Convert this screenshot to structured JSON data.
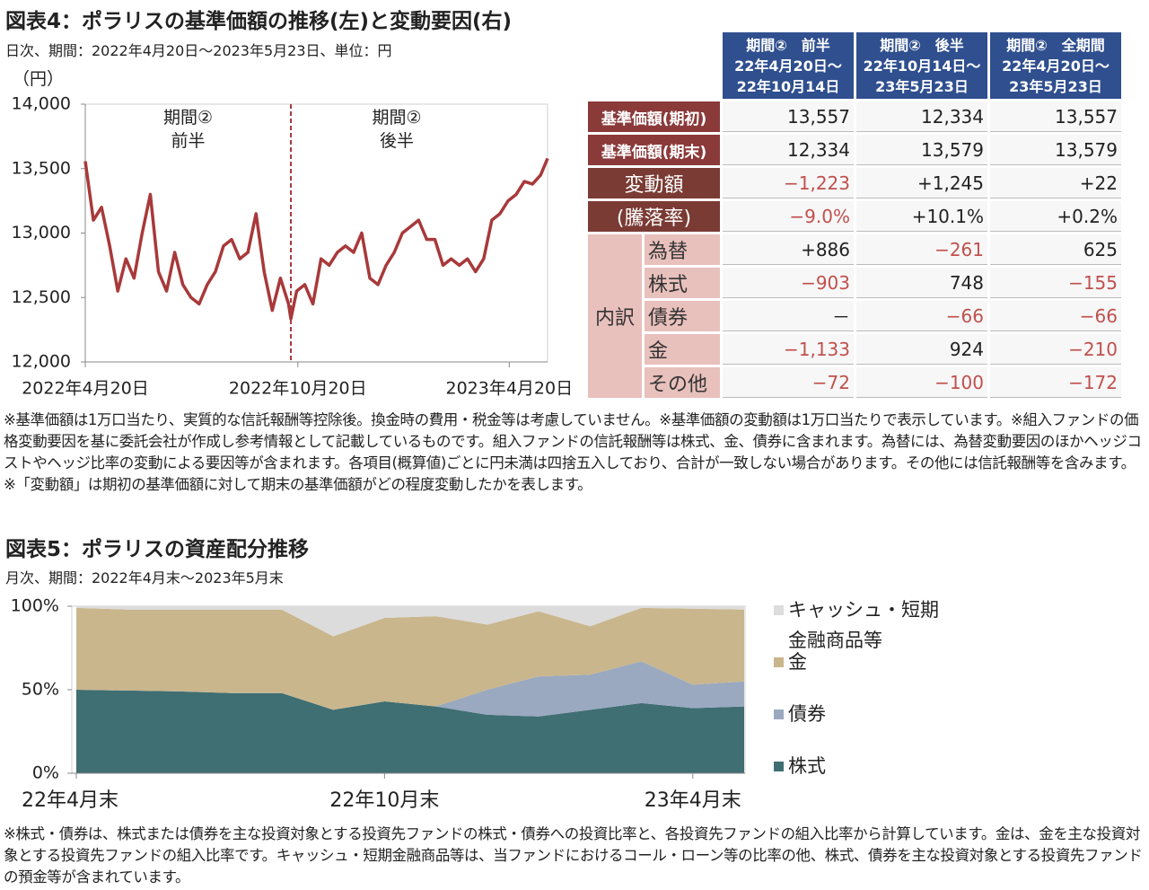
{
  "chart_data": [
    {
      "type": "line",
      "title": "図表4：ポラリスの基準価額の推移(左)と変動要因(右)",
      "subtitle": "日次、期間：2022年4月20日～2023年5月23日、単位：円",
      "y_label": "（円）",
      "x": [
        "2022-04-20",
        "2022-04-27",
        "2022-05-04",
        "2022-05-11",
        "2022-05-18",
        "2022-05-25",
        "2022-06-01",
        "2022-06-08",
        "2022-06-15",
        "2022-06-22",
        "2022-06-29",
        "2022-07-06",
        "2022-07-13",
        "2022-07-20",
        "2022-07-27",
        "2022-08-03",
        "2022-08-10",
        "2022-08-17",
        "2022-08-24",
        "2022-08-31",
        "2022-09-07",
        "2022-09-14",
        "2022-09-21",
        "2022-09-28",
        "2022-10-05",
        "2022-10-12",
        "2022-10-14",
        "2022-10-19",
        "2022-10-26",
        "2022-11-02",
        "2022-11-09",
        "2022-11-16",
        "2022-11-23",
        "2022-11-30",
        "2022-12-07",
        "2022-12-14",
        "2022-12-21",
        "2022-12-28",
        "2023-01-04",
        "2023-01-11",
        "2023-01-18",
        "2023-01-25",
        "2023-02-01",
        "2023-02-08",
        "2023-02-15",
        "2023-02-22",
        "2023-03-01",
        "2023-03-08",
        "2023-03-15",
        "2023-03-22",
        "2023-03-29",
        "2023-04-05",
        "2023-04-12",
        "2023-04-19",
        "2023-04-26",
        "2023-05-03",
        "2023-05-10",
        "2023-05-17",
        "2023-05-23"
      ],
      "series": [
        {
          "name": "基準価額",
          "color": "#a8393a",
          "values": [
            13557,
            13100,
            13200,
            12900,
            12550,
            12800,
            12650,
            13000,
            13300,
            12700,
            12550,
            12850,
            12600,
            12500,
            12450,
            12600,
            12700,
            12900,
            12950,
            12800,
            12850,
            13150,
            12700,
            12400,
            12650,
            12450,
            12334,
            12550,
            12600,
            12450,
            12800,
            12750,
            12850,
            12900,
            12850,
            13000,
            12650,
            12600,
            12750,
            12850,
            13000,
            13050,
            13100,
            12950,
            12950,
            12750,
            12800,
            12750,
            12800,
            12700,
            12800,
            13100,
            13150,
            13250,
            13300,
            13400,
            13380,
            13450,
            13579
          ]
        }
      ],
      "xlim": [
        "2022-04-20",
        "2023-05-23"
      ],
      "xticks": [
        {
          "value": "2022-04-20",
          "label": "2022年4月20日"
        },
        {
          "value": "2022-10-20",
          "label": "2022年10月20日"
        },
        {
          "value": "2023-04-20",
          "label": "2023年4月20日"
        }
      ],
      "ylim": [
        12000,
        14000
      ],
      "yticks": [
        {
          "value": 12000,
          "label": "12,000"
        },
        {
          "value": 12500,
          "label": "12,500"
        },
        {
          "value": 13000,
          "label": "13,000"
        },
        {
          "value": 13500,
          "label": "13,500"
        },
        {
          "value": 14000,
          "label": "14,000"
        }
      ],
      "period_split": "2022-10-14",
      "annotations": [
        "期間②\n前半",
        "期間②\n後半"
      ]
    },
    {
      "type": "stacked_area",
      "title": "図表5：ポラリスの資産配分推移",
      "subtitle": "月次、期間：2022年4月末～2023年5月末",
      "categories": [
        "22年4月末",
        null,
        null,
        null,
        null,
        null,
        "22年10月末",
        null,
        null,
        null,
        null,
        null,
        "23年4月末",
        null
      ],
      "series": [
        {
          "name": "株式",
          "color": "#3f6e73",
          "values": [
            50,
            49.5,
            49,
            48,
            48,
            38,
            43,
            40,
            35,
            34,
            38,
            42,
            39,
            40
          ]
        },
        {
          "name": "債券",
          "color": "#9aa9bf",
          "values": [
            0,
            0,
            0,
            0,
            0,
            0,
            0,
            0,
            15,
            24,
            21,
            25,
            14,
            15
          ]
        },
        {
          "name": "金",
          "color": "#c9b68d",
          "values": [
            49,
            48.5,
            49,
            50,
            50,
            44,
            50,
            54,
            39,
            39,
            29,
            32,
            45.5,
            43
          ]
        },
        {
          "name": "キャッシュ・短期\n金融商品等",
          "color": "#dcdcdc",
          "values": [
            1,
            2,
            2,
            2,
            2,
            18,
            7,
            6,
            11,
            3,
            12,
            1,
            1.5,
            2
          ]
        }
      ],
      "ylim": [
        0,
        100
      ],
      "yticks": [
        {
          "value": 0,
          "label": "0%"
        },
        {
          "value": 50,
          "label": "50%"
        },
        {
          "value": 100,
          "label": "100%"
        }
      ]
    }
  ],
  "table": {
    "columns": [
      "期間②　前半\n22年4月20日～\n22年10月14日",
      "期間②　後半\n22年10月14日～\n23年5月23日",
      "期間②　全期間\n22年4月20日～\n23年5月23日"
    ],
    "rows": [
      {
        "label": "基準価額(期初)",
        "cells": [
          "13,557",
          "12,334",
          "13,557"
        ]
      },
      {
        "label": "基準価額(期末)",
        "cells": [
          "12,334",
          "13,579",
          "13,579"
        ]
      },
      {
        "label": "変動額",
        "cells": [
          "−1,223",
          "+1,245",
          "+22"
        ]
      },
      {
        "label": "(騰落率)",
        "cells": [
          "−9.0%",
          "+10.1%",
          "+0.2%"
        ]
      }
    ],
    "breakdown_label": "内訳",
    "breakdown": [
      {
        "label": "為替",
        "cells": [
          "+886",
          "−261",
          "625"
        ]
      },
      {
        "label": "株式",
        "cells": [
          "−903",
          "748",
          "−155"
        ]
      },
      {
        "label": "債券",
        "cells": [
          "－",
          "−66",
          "−66"
        ]
      },
      {
        "label": "金",
        "cells": [
          "−1,133",
          "924",
          "−210"
        ]
      },
      {
        "label": "その他",
        "cells": [
          "−72",
          "−100",
          "−172"
        ]
      }
    ]
  },
  "notes": [
    "※基準価額は1万口当たり、実質的な信託報酬等控除後。換金時の費用・税金等は考慮していません。※基準価額の変動額は1万口当たりで表示しています。※組入ファンドの価格変動要因を基に委託会社が作成し参考情報として記載しているものです。組入ファンドの信託報酬等は株式、金、債券に含まれます。為替には、為替変動要因のほかヘッジコストやヘッジ比率の変動による要因等が含まれます。各項目(概算値)ごとに円未満は四捨五入しており、合計が一致しない場合があります。その他には信託報酬等を含みます。※「変動額」は期初の基準価額に対して期末の基準価額がどの程度変動したかを表します。",
    "※株式・債券は、株式または債券を主な投資対象とする投資先ファンドの株式・債券への投資比率と、各投資先ファンドの組入比率から計算しています。金は、金を主な投資対象とする投資先ファンドの組入比率です。キャッシュ・短期金融商品等は、当ファンドにおけるコール・ローン等の比率の他、株式、債券を主な投資対象とする投資先ファンドの預金等が含まれています。"
  ]
}
